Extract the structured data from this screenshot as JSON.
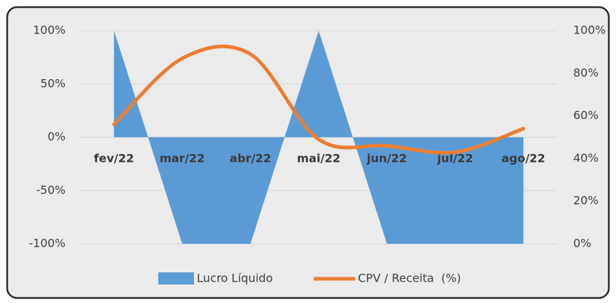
{
  "chart_data": {
    "type": "area-line",
    "categories": [
      "fev/22",
      "mar/22",
      "abr/22",
      "mai/22",
      "jun/22",
      "jul/22",
      "ago/22"
    ],
    "series": [
      {
        "name": "Lucro Líquido",
        "color": "#5b9bd5",
        "type": "area",
        "values": [
          100,
          -100,
          -100,
          100,
          -100,
          -100,
          -100
        ]
      },
      {
        "name": "CPV / Receita  (%)",
        "color": "#ed7d31",
        "type": "line",
        "axis": "y2",
        "values": [
          56,
          87,
          89,
          49,
          46,
          43,
          54
        ]
      }
    ],
    "ylim": [
      -100,
      100
    ],
    "yticks": [
      {
        "value": -100,
        "label": "-100%"
      },
      {
        "value": -50,
        "label": "-50%"
      },
      {
        "value": 0,
        "label": "0%"
      },
      {
        "value": 50,
        "label": "50%"
      },
      {
        "value": 100,
        "label": "100%"
      }
    ],
    "y2lim": [
      0,
      100
    ],
    "y2ticks": [
      {
        "value": 0,
        "label": "0%"
      },
      {
        "value": 20,
        "label": "20%"
      },
      {
        "value": 40,
        "label": "40%"
      },
      {
        "value": 60,
        "label": "60%"
      },
      {
        "value": 80,
        "label": "80%"
      },
      {
        "value": 100,
        "label": "100%"
      }
    ],
    "grid": true,
    "legend": "bottom"
  }
}
